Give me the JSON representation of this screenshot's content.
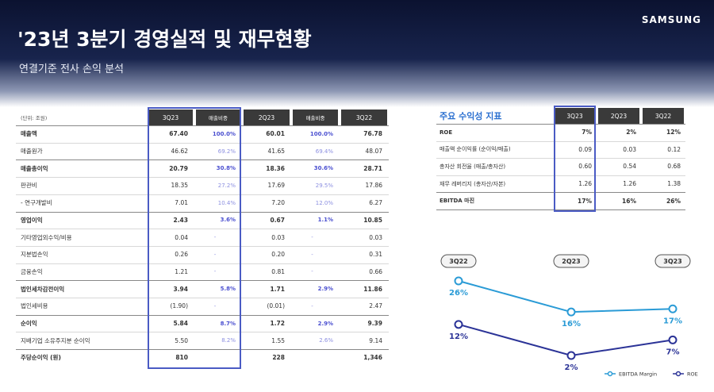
{
  "header": {
    "brand": "SAMSUNG",
    "title": "'23년 3분기 경영실적 및 재무현황",
    "subtitle": "연결기준 전사 손익 분석"
  },
  "left_table": {
    "header": [
      "(단위: 조원)",
      "3Q23",
      "매출비중",
      "2Q23",
      "매출비중",
      "3Q22"
    ],
    "rows": [
      [
        "매출액",
        "67.40",
        "100.0%",
        "60.01",
        "100.0%",
        "76.78"
      ],
      [
        "매출원가",
        "46.62",
        "69.2%",
        "41.65",
        "69.4%",
        "48.07"
      ],
      [
        "매출총이익",
        "20.79",
        "30.8%",
        "18.36",
        "30.6%",
        "28.71"
      ],
      [
        "판관비",
        "18.35",
        "27.2%",
        "17.69",
        "29.5%",
        "17.86"
      ],
      [
        "- 연구개발비",
        "7.01",
        "10.4%",
        "7.20",
        "12.0%",
        "6.27"
      ],
      [
        "영업이익",
        "2.43",
        "3.6%",
        "0.67",
        "1.1%",
        "10.85"
      ],
      [
        "기타영업외수익/비용",
        "0.04",
        "-",
        "0.03",
        "-",
        "0.03"
      ],
      [
        "지분법손익",
        "0.26",
        "-",
        "0.20",
        "-",
        "0.31"
      ],
      [
        "금융손익",
        "1.21",
        "-",
        "0.81",
        "-",
        "0.66"
      ],
      [
        "법인세차감전이익",
        "3.94",
        "5.8%",
        "1.71",
        "2.9%",
        "11.86"
      ],
      [
        "법인세비용",
        "(1.90)",
        "-",
        "(0.01)",
        "-",
        "2.47"
      ],
      [
        "순이익",
        "5.84",
        "8.7%",
        "1.72",
        "2.9%",
        "9.39"
      ],
      [
        "지배기업 소유주지분 순이익",
        "5.50",
        "8.2%",
        "1.55",
        "2.6%",
        "9.14"
      ],
      [
        "주당순이익 (원)",
        "810",
        null,
        "228",
        null,
        "1,346"
      ]
    ]
  },
  "right_table": {
    "header": [
      "주요 수익성 지표",
      "3Q23",
      "2Q23",
      "3Q22"
    ],
    "rows": [
      [
        "ROE",
        "7%",
        "2%",
        "12%"
      ],
      [
        "매출액 순이익률 (순이익/매출)",
        "0.09",
        "0.03",
        "0.12"
      ],
      [
        "총자산 회전율 (매출/총자산)",
        "0.60",
        "0.54",
        "0.68"
      ],
      [
        "재무 레버리지 (총자산/자본)",
        "1.26",
        "1.26",
        "1.38"
      ],
      [
        "EBITDA 마진",
        "17%",
        "16%",
        "26%"
      ]
    ]
  },
  "chart_data": {
    "type": "line",
    "categories": [
      "3Q22",
      "2Q23",
      "3Q23"
    ],
    "series": [
      {
        "name": "EBITDA Margin",
        "color": "#2a9bd6",
        "values": [
          26,
          16,
          17
        ],
        "value_labels": [
          "26%",
          "16%",
          "17%"
        ]
      },
      {
        "name": "ROE",
        "color": "#2b3397",
        "values": [
          12,
          2,
          7
        ],
        "value_labels": [
          "12%",
          "2%",
          "7%"
        ]
      }
    ]
  }
}
